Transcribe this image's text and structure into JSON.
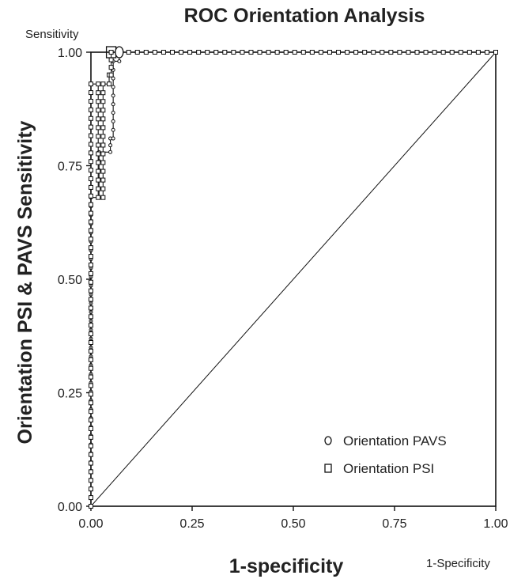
{
  "chart_data": {
    "type": "line",
    "title": "ROC Orientation Analysis",
    "xlabel": "1-specificity",
    "ylabel": "Orientation PSI & PAVS Sensitivity",
    "x_corner_label": "1-Specificity",
    "y_corner_label": "Sensitivity",
    "xlim": [
      0,
      1
    ],
    "ylim": [
      0,
      1
    ],
    "x_ticks": [
      "0.00",
      "0.25",
      "0.50",
      "0.75",
      "1.00"
    ],
    "y_ticks": [
      "0.00",
      "0.25",
      "0.50",
      "0.75",
      "1.00"
    ],
    "grid": false,
    "legend_position": "bottom-right",
    "reference_line": {
      "x": [
        0,
        1
      ],
      "y": [
        0,
        1
      ]
    },
    "series": [
      {
        "name": "Orientation PAVS",
        "marker": "circle",
        "x": [
          0,
          0,
          0.02,
          0.02,
          0.048,
          0.048,
          0.055,
          0.055,
          0.07,
          0.07,
          1.0
        ],
        "y": [
          0,
          0.68,
          0.68,
          0.78,
          0.78,
          0.81,
          0.81,
          0.98,
          0.98,
          1.0,
          1.0
        ]
      },
      {
        "name": "Orientation PSI",
        "marker": "square",
        "x": [
          0,
          0,
          0.018,
          0.018,
          0.03,
          0.03,
          0.045,
          0.045,
          0.05,
          0.05,
          1.0
        ],
        "y": [
          0,
          0.93,
          0.93,
          0.68,
          0.68,
          0.93,
          0.93,
          0.95,
          0.95,
          1.0,
          1.0
        ]
      }
    ]
  }
}
